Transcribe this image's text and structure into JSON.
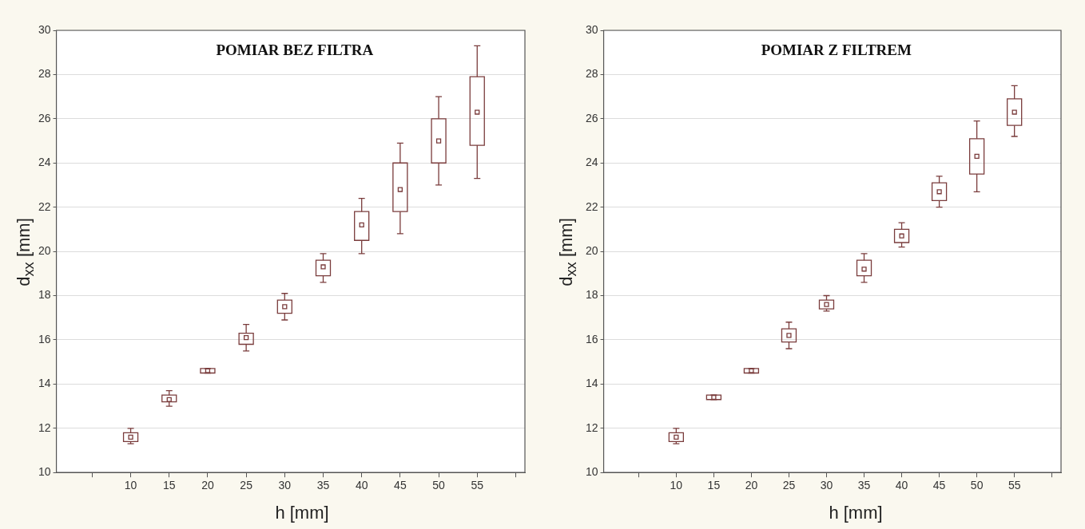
{
  "chart_data": [
    {
      "type": "box",
      "title": "POMIAR BEZ FILTRA",
      "xlabel": "h [mm]",
      "ylabel": "d$_{xx}$ [mm]",
      "color": "#7a3c3c",
      "grid": "y",
      "ylim": [
        10,
        30
      ],
      "yticks": [
        10,
        12,
        14,
        16,
        18,
        20,
        22,
        24,
        26,
        28,
        30
      ],
      "categories": [
        "10",
        "15",
        "20",
        "25",
        "30",
        "35",
        "40",
        "45",
        "50",
        "55"
      ],
      "boxes": [
        {
          "low": 11.3,
          "q1": 11.4,
          "median": 11.6,
          "q3": 11.8,
          "high": 12.0
        },
        {
          "low": 13.0,
          "q1": 13.2,
          "median": 13.3,
          "q3": 13.5,
          "high": 13.7
        },
        {
          "low": 14.5,
          "q1": 14.5,
          "median": 14.6,
          "q3": 14.7,
          "high": 14.7
        },
        {
          "low": 15.5,
          "q1": 15.8,
          "median": 16.1,
          "q3": 16.3,
          "high": 16.7
        },
        {
          "low": 16.9,
          "q1": 17.2,
          "median": 17.5,
          "q3": 17.8,
          "high": 18.1
        },
        {
          "low": 18.6,
          "q1": 18.9,
          "median": 19.3,
          "q3": 19.6,
          "high": 19.9
        },
        {
          "low": 19.9,
          "q1": 20.5,
          "median": 21.2,
          "q3": 21.8,
          "high": 22.4
        },
        {
          "low": 20.8,
          "q1": 21.8,
          "median": 22.8,
          "q3": 24.0,
          "high": 24.9
        },
        {
          "low": 23.0,
          "q1": 24.0,
          "median": 25.0,
          "q3": 26.0,
          "high": 27.0
        },
        {
          "low": 23.3,
          "q1": 24.8,
          "median": 26.3,
          "q3": 27.9,
          "high": 29.3
        }
      ]
    },
    {
      "type": "box",
      "title": "POMIAR Z FILTREM",
      "xlabel": "h [mm]",
      "ylabel": "d$_{xx}$ [mm]",
      "color": "#7a3c3c",
      "grid": "y",
      "ylim": [
        10,
        30
      ],
      "yticks": [
        10,
        12,
        14,
        16,
        18,
        20,
        22,
        24,
        26,
        28,
        30
      ],
      "categories": [
        "10",
        "15",
        "20",
        "25",
        "30",
        "35",
        "40",
        "45",
        "50",
        "55"
      ],
      "boxes": [
        {
          "low": 11.3,
          "q1": 11.4,
          "median": 11.6,
          "q3": 11.8,
          "high": 12.0
        },
        {
          "low": 13.3,
          "q1": 13.3,
          "median": 13.4,
          "q3": 13.5,
          "high": 13.5
        },
        {
          "low": 14.5,
          "q1": 14.5,
          "median": 14.6,
          "q3": 14.7,
          "high": 14.7
        },
        {
          "low": 15.6,
          "q1": 15.9,
          "median": 16.2,
          "q3": 16.5,
          "high": 16.8
        },
        {
          "low": 17.3,
          "q1": 17.4,
          "median": 17.6,
          "q3": 17.8,
          "high": 18.0
        },
        {
          "low": 18.6,
          "q1": 18.9,
          "median": 19.2,
          "q3": 19.6,
          "high": 19.9
        },
        {
          "low": 20.2,
          "q1": 20.4,
          "median": 20.7,
          "q3": 21.0,
          "high": 21.3
        },
        {
          "low": 22.0,
          "q1": 22.3,
          "median": 22.7,
          "q3": 23.1,
          "high": 23.4
        },
        {
          "low": 22.7,
          "q1": 23.5,
          "median": 24.3,
          "q3": 25.1,
          "high": 25.9
        },
        {
          "low": 25.2,
          "q1": 25.7,
          "median": 26.3,
          "q3": 26.9,
          "high": 27.5
        }
      ]
    }
  ]
}
